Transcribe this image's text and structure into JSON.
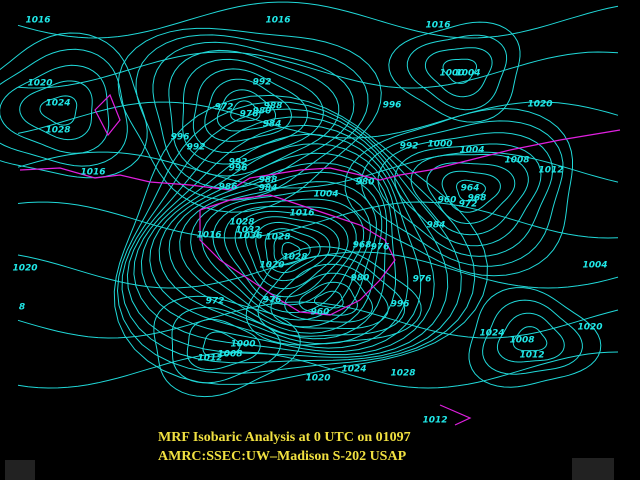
{
  "map": {
    "contour_labels": [
      "1016",
      "1016",
      "1016",
      "1000",
      "1004",
      "1020",
      "1024",
      "1028",
      "992",
      "972",
      "976",
      "980",
      "988",
      "984",
      "996",
      "1020",
      "996",
      "992",
      "992",
      "1000",
      "1004",
      "1008",
      "1012",
      "1016",
      "992",
      "996",
      "988",
      "984",
      "980",
      "1004",
      "964",
      "960",
      "968",
      "972",
      "986",
      "1016",
      "984",
      "1028",
      "1032",
      "1036",
      "1016",
      "1028",
      "1020",
      "1004",
      "976",
      "968",
      "1028",
      "1020",
      "980",
      "976",
      "972",
      "976",
      "996",
      "960",
      "1020",
      "1024",
      "1000",
      "1008",
      "1012",
      "1008",
      "1012",
      "1020",
      "1024",
      "1028",
      "1012",
      "8"
    ]
  },
  "footer": {
    "line1": "MRF Isobaric Analysis at 0 UTC on 01097",
    "line2": "AMRC:SSEC:UW–Madison S-202 USAP"
  }
}
